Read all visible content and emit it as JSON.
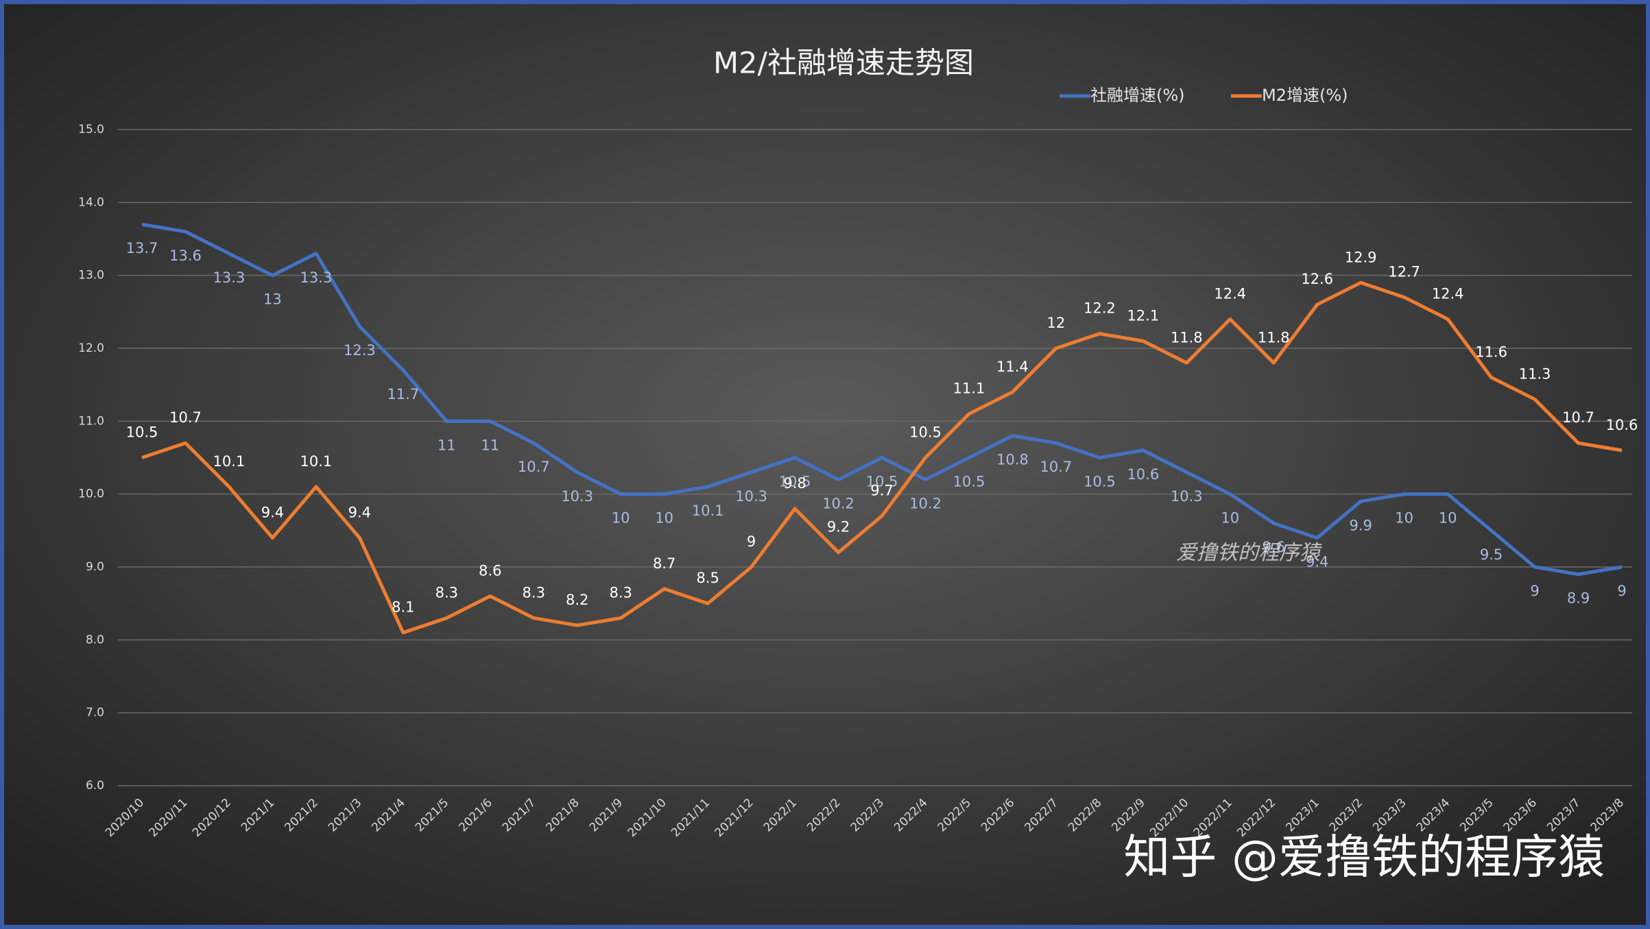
{
  "chart_data": {
    "type": "line",
    "title": "M2/社融增速走势图",
    "categories": [
      "2020/10",
      "2020/11",
      "2020/12",
      "2021/1",
      "2021/2",
      "2021/3",
      "2021/4",
      "2021/5",
      "2021/6",
      "2021/7",
      "2021/8",
      "2021/9",
      "2021/10",
      "2021/11",
      "2021/12",
      "2022/1",
      "2022/2",
      "2022/3",
      "2022/4",
      "2022/5",
      "2022/6",
      "2022/7",
      "2022/8",
      "2022/9",
      "2022/10",
      "2022/11",
      "2022/12",
      "2023/1",
      "2023/2",
      "2023/3",
      "2023/4",
      "2023/5",
      "2023/6",
      "2023/7",
      "2023/8"
    ],
    "series": [
      {
        "name": "社融增速(%)",
        "color": "#4472c4",
        "label_color": "#a9bde3",
        "label_pos": "below",
        "values": [
          13.7,
          13.6,
          13.3,
          13,
          13.3,
          12.3,
          11.7,
          11,
          11,
          10.7,
          10.3,
          10,
          10,
          10.1,
          10.3,
          10.5,
          10.2,
          10.5,
          10.2,
          10.5,
          10.8,
          10.7,
          10.5,
          10.6,
          10.3,
          10,
          9.6,
          9.4,
          9.9,
          10,
          10,
          9.5,
          9,
          8.9,
          9
        ]
      },
      {
        "name": "M2增速(%)",
        "color": "#ed7d31",
        "label_color": "#ffffff",
        "label_pos": "above",
        "values": [
          10.5,
          10.7,
          10.1,
          9.4,
          10.1,
          9.4,
          8.1,
          8.3,
          8.6,
          8.3,
          8.2,
          8.3,
          8.7,
          8.5,
          9,
          9.8,
          9.2,
          9.7,
          10.5,
          11.1,
          11.4,
          12,
          12.2,
          12.1,
          11.8,
          12.4,
          11.8,
          12.6,
          12.9,
          12.7,
          12.4,
          11.6,
          11.3,
          10.7,
          10.6
        ]
      }
    ],
    "ylim": [
      6,
      15
    ],
    "yticks": [
      {
        "value": 6,
        "label": "6.0"
      },
      {
        "value": 7,
        "label": "7.0"
      },
      {
        "value": 8,
        "label": "8.0"
      },
      {
        "value": 9,
        "label": "9.0"
      },
      {
        "value": 10,
        "label": "10.0"
      },
      {
        "value": 11,
        "label": "11.0"
      },
      {
        "value": 12,
        "label": "12.0"
      },
      {
        "value": 13,
        "label": "13.0"
      },
      {
        "value": 14,
        "label": "14.0"
      },
      {
        "value": 15,
        "label": "15.0"
      }
    ],
    "grid": true,
    "legend": "top-right",
    "watermarks": [
      "爱撸铁的程序猿",
      "知乎 @爱撸铁的程序猿"
    ]
  }
}
